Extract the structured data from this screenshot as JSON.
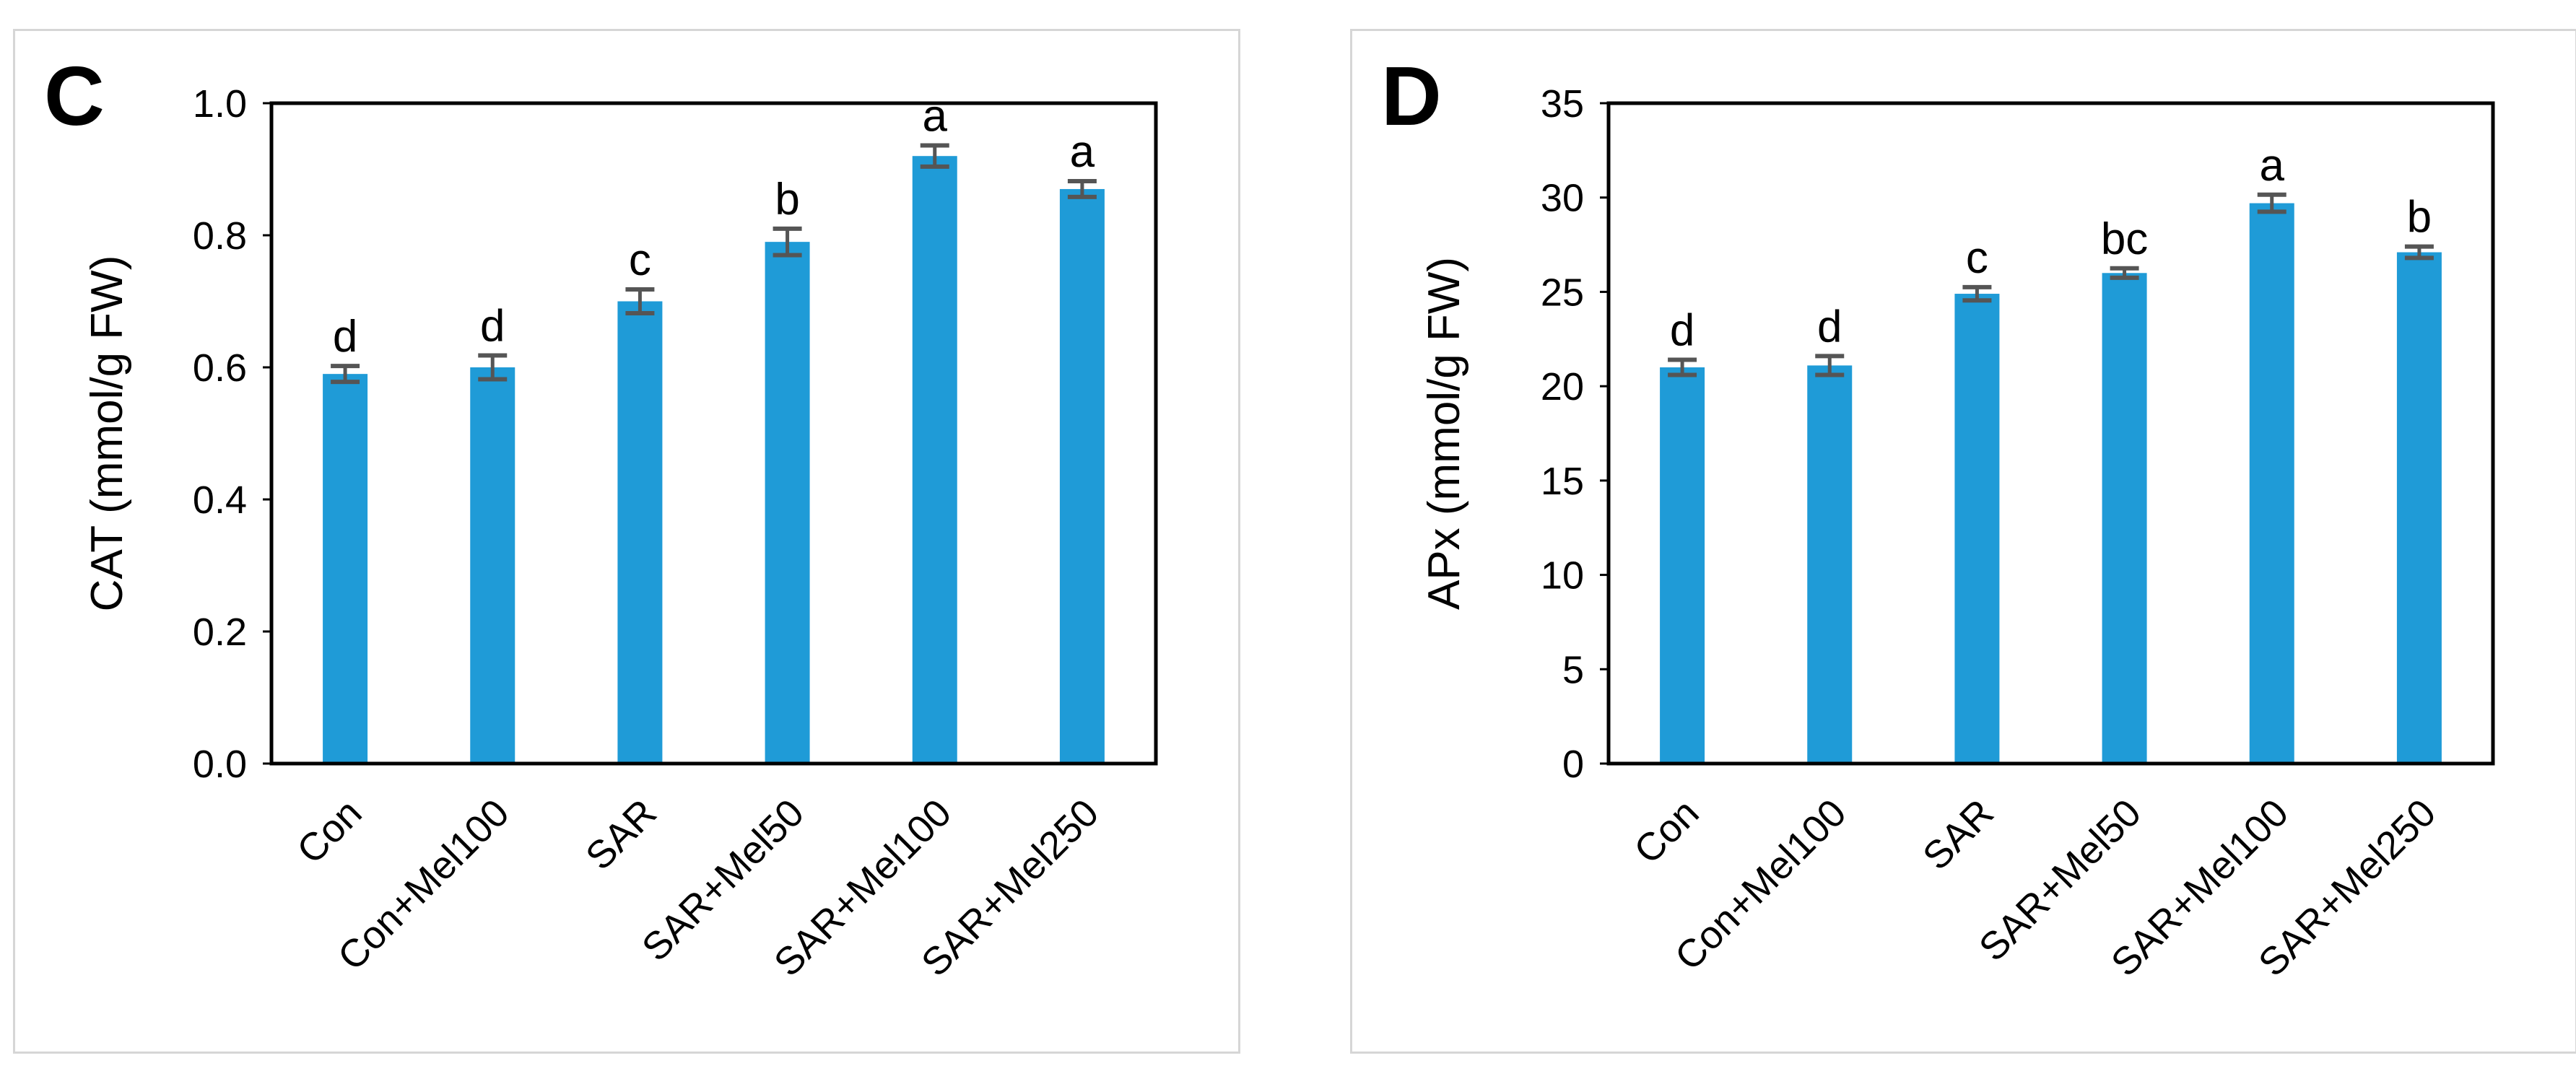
{
  "chart_data": [
    {
      "type": "bar",
      "panel_label": "C",
      "title": "",
      "xlabel": "",
      "ylabel": "CAT (mmol/g FW)",
      "categories": [
        "Con",
        "Con+Mel100",
        "SAR",
        "SAR+Mel50",
        "SAR+Mel100",
        "SAR+Mel250"
      ],
      "values": [
        0.59,
        0.6,
        0.7,
        0.79,
        0.92,
        0.87
      ],
      "errors": [
        0.012,
        0.018,
        0.018,
        0.02,
        0.016,
        0.012
      ],
      "significance": [
        "d",
        "d",
        "c",
        "b",
        "a",
        "a"
      ],
      "ylim": [
        0,
        1.0
      ],
      "yticks": [
        0.0,
        0.2,
        0.4,
        0.6,
        0.8,
        1.0
      ],
      "ytick_labels": [
        "0.0",
        "0.2",
        "0.4",
        "0.6",
        "0.8",
        "1.0"
      ],
      "bar_color": "#1f9bd7",
      "error_color": "#555555",
      "grid": false,
      "legend": "none"
    },
    {
      "type": "bar",
      "panel_label": "D",
      "title": "",
      "xlabel": "",
      "ylabel": "APx (mmol/g FW)",
      "categories": [
        "Con",
        "Con+Mel100",
        "SAR",
        "SAR+Mel50",
        "SAR+Mel100",
        "SAR+Mel250"
      ],
      "values": [
        21.0,
        21.1,
        24.9,
        26.0,
        29.7,
        27.1
      ],
      "errors": [
        0.4,
        0.5,
        0.35,
        0.25,
        0.45,
        0.3
      ],
      "significance": [
        "d",
        "d",
        "c",
        "bc",
        "a",
        "b"
      ],
      "ylim": [
        0,
        35
      ],
      "yticks": [
        0,
        5,
        10,
        15,
        20,
        25,
        30,
        35
      ],
      "ytick_labels": [
        "0",
        "5",
        "10",
        "15",
        "20",
        "25",
        "30",
        "35"
      ],
      "bar_color": "#1f9bd7",
      "error_color": "#555555",
      "grid": false,
      "legend": "none"
    }
  ]
}
